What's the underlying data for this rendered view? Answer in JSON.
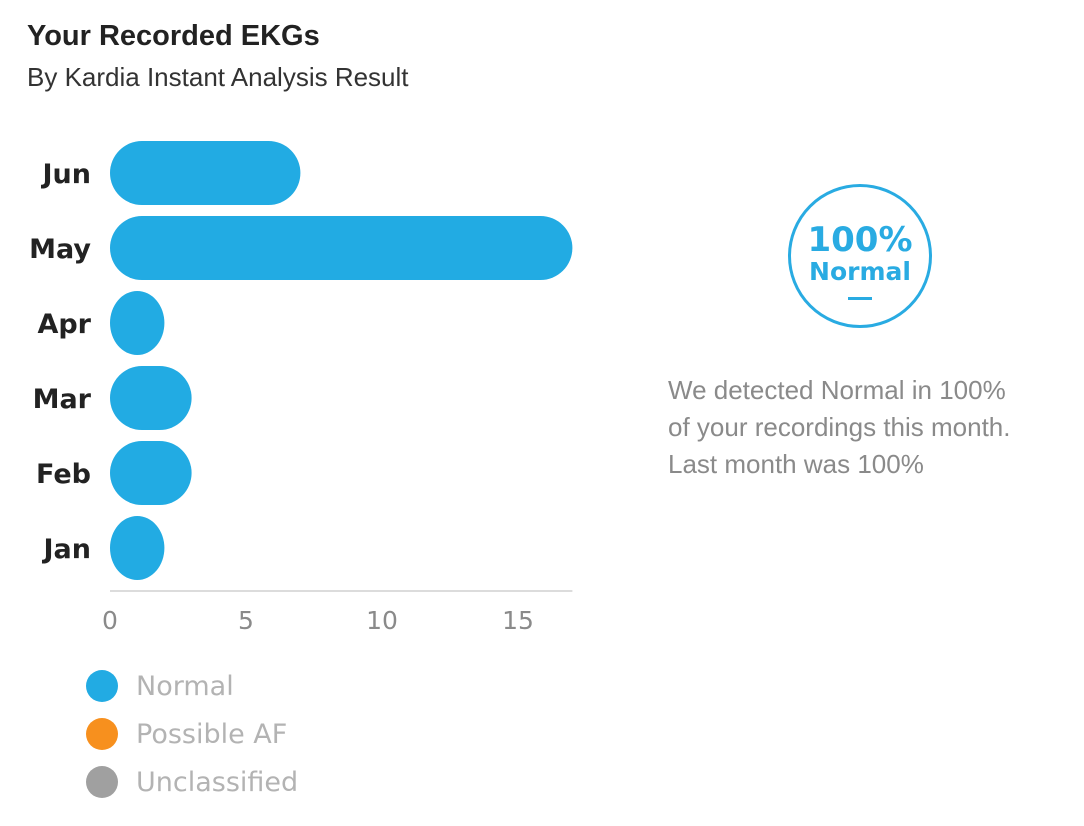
{
  "header": {
    "title": "Your Recorded EKGs",
    "subtitle": "By Kardia Instant Analysis Result"
  },
  "chart_data": {
    "type": "bar",
    "orientation": "horizontal",
    "categories": [
      "Jun",
      "May",
      "Apr",
      "Mar",
      "Feb",
      "Jan"
    ],
    "series": [
      {
        "name": "Normal",
        "color": "#22abe3",
        "values": [
          7,
          17,
          2,
          3,
          3,
          2
        ]
      }
    ],
    "xticks": [
      0,
      5,
      10,
      15
    ],
    "xlim": [
      0,
      17
    ],
    "grid": false,
    "legend_placement": "bottom-left"
  },
  "legend": {
    "items": [
      {
        "label": "Normal",
        "color": "#22abe3"
      },
      {
        "label": "Possible AF",
        "color": "#f7901e"
      },
      {
        "label": "Unclassified",
        "color": "#a0a0a0"
      }
    ]
  },
  "summary": {
    "percent": "100%",
    "label": "Normal",
    "accent_color": "#29abe2",
    "lines": [
      "We detected Normal in 100%",
      "of your recordings this month.",
      "Last month was 100%"
    ]
  }
}
